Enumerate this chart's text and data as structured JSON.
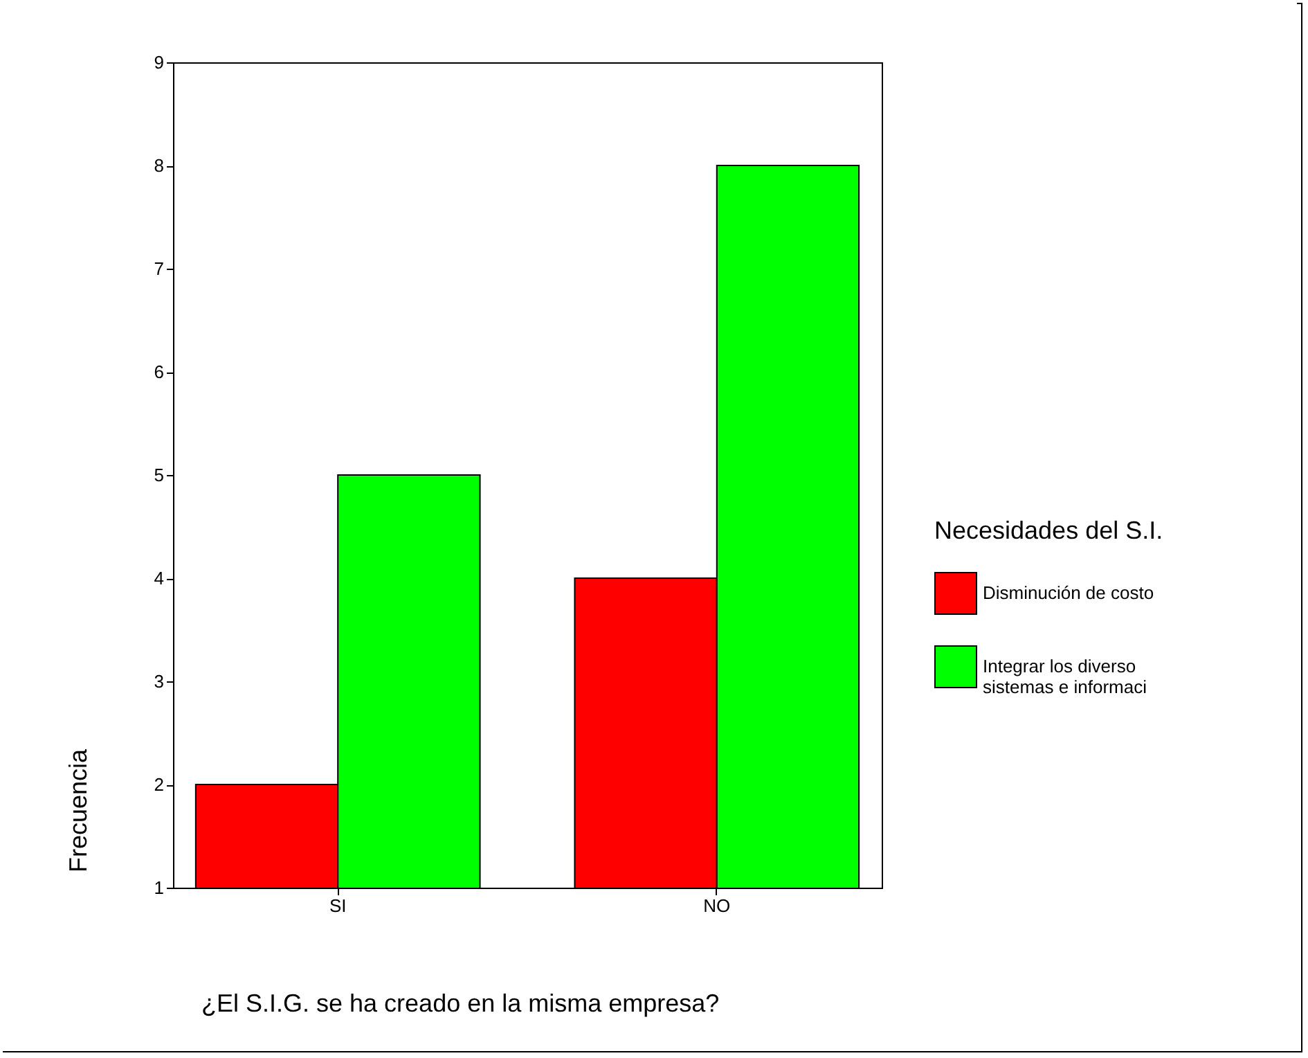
{
  "chart_data": {
    "type": "bar",
    "xlabel": "¿El S.I.G. se ha creado en la misma empresa?",
    "ylabel": "Frecuencia",
    "legend_title": "Necesidades del S.I.",
    "categories": [
      "SI",
      "NO"
    ],
    "series": [
      {
        "name": "Disminución de costo",
        "color": "#ff0000",
        "values": [
          2,
          4
        ]
      },
      {
        "name": "Integrar los diverso sistemas e informaci",
        "color": "#00ff00",
        "values": [
          5,
          8
        ]
      }
    ],
    "ylim": [
      1,
      9
    ],
    "yticks": [
      1,
      2,
      3,
      4,
      5,
      6,
      7,
      8,
      9
    ],
    "grid": false,
    "legend": "right"
  }
}
